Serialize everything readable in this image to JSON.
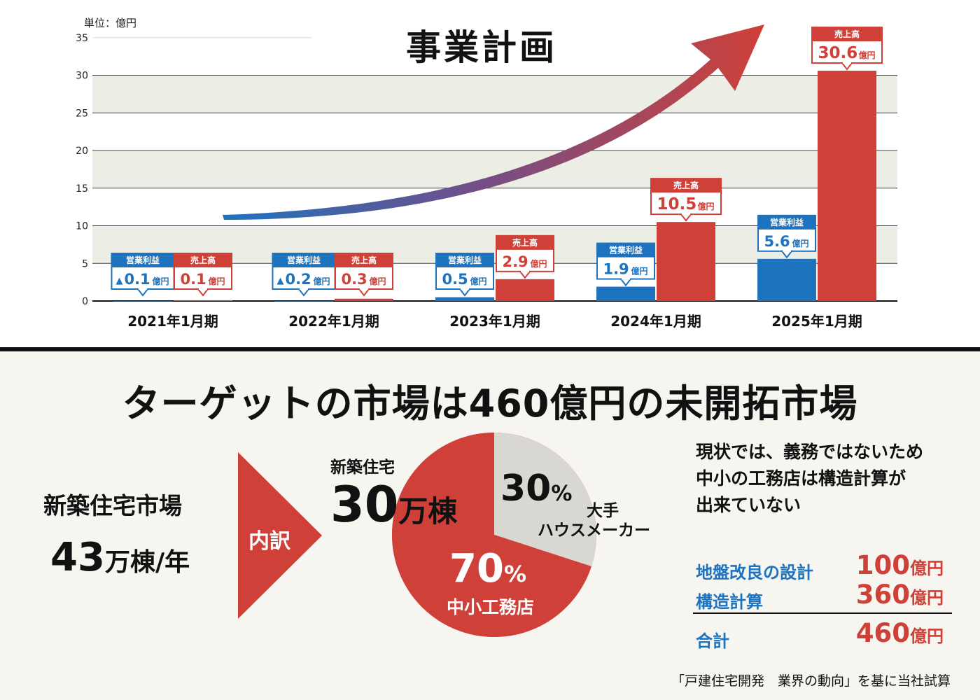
{
  "chart": {
    "title": "事業計画",
    "unit": "単位：億円"
  },
  "chart_data": {
    "type": "bar",
    "categories": [
      "2021年1月期",
      "2022年1月期",
      "2023年1月期",
      "2024年1月期",
      "2025年1月期"
    ],
    "ylim": [
      0,
      35
    ],
    "yticks": [
      0,
      5,
      10,
      15,
      20,
      25,
      30,
      35
    ],
    "grid": true,
    "series": [
      {
        "name": "営業利益",
        "color": "#1e73be",
        "values": [
          -0.1,
          -0.2,
          0.5,
          1.9,
          5.6
        ],
        "labels": [
          "▲0.1",
          "▲0.2",
          "0.5",
          "1.9",
          "5.6"
        ]
      },
      {
        "name": "売上高",
        "color": "#cf4038",
        "values": [
          0.1,
          0.3,
          2.9,
          10.5,
          30.6
        ],
        "labels": [
          "0.1",
          "0.3",
          "2.9",
          "10.5",
          "30.6"
        ]
      }
    ],
    "value_unit": "億円"
  },
  "market": {
    "headline": "ターゲットの市場は460億円の未開拓市場",
    "new_house_market_label": "新築住宅市場",
    "new_house_market_value": "43",
    "new_house_market_unit": "万棟/年",
    "breakdown_label": "内訳",
    "new_house_label": "新築住宅",
    "new_house_value": "30",
    "new_house_unit": "万棟"
  },
  "pie": {
    "slices": [
      {
        "label": "大手ハウスメーカー",
        "value": 30,
        "color": "#d9d7d1"
      },
      {
        "label": "中小工務店",
        "value": 70,
        "color": "#cf4038"
      }
    ],
    "large_pct": "30",
    "large_label_1": "大手",
    "large_label_2": "ハウスメーカー",
    "small_pct": "70",
    "small_label": "中小工務店",
    "pct_unit": "%"
  },
  "notes": {
    "line1": "現状では、義務ではないため",
    "line2": "中小の工務店は構造計算が",
    "line3": "出来ていない"
  },
  "breakdown": {
    "unit": "億円",
    "items": [
      {
        "label": "地盤改良の設計",
        "value": "100"
      },
      {
        "label": "構造計算",
        "value": "360"
      }
    ],
    "total_label": "合計",
    "total_value": "460"
  },
  "source": "「戸建住宅開発　業界の動向」を基に当社試算",
  "colors": {
    "profit": "#1e73be",
    "sales": "#cf4038",
    "band": "#eceee6",
    "arrow_start": "#1e73be",
    "arrow_end": "#cf4038"
  }
}
